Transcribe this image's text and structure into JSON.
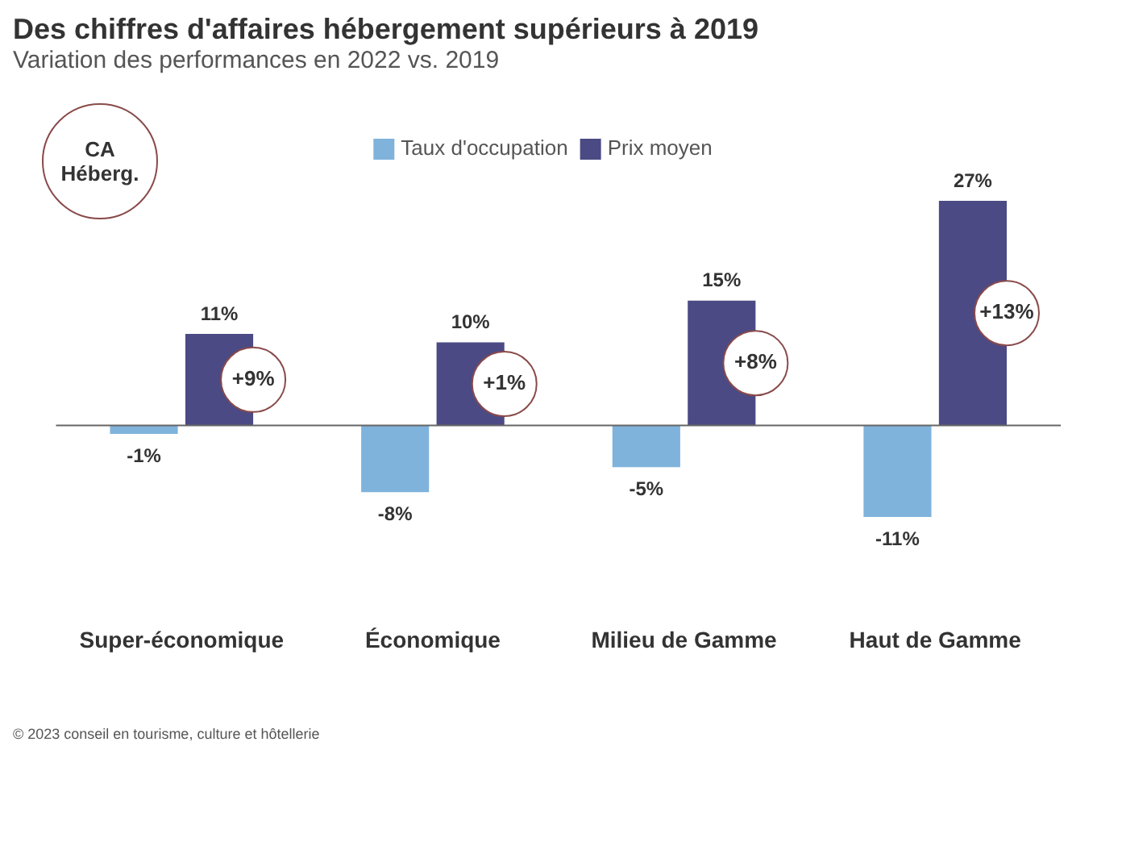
{
  "chart_data": {
    "type": "bar",
    "title": "Des chiffres d'affaires hébergement supérieurs à 2019",
    "subtitle": "Variation des performances en 2022 vs. 2019",
    "categories": [
      "Super-économique",
      "Économique",
      "Milieu de Gamme",
      "Haut de Gamme"
    ],
    "series": [
      {
        "name": "Taux d'occupation",
        "color": "#7fb3dc",
        "values": [
          -1,
          -8,
          -5,
          -11
        ],
        "value_labels": [
          "-1%",
          "-8%",
          "-5%",
          "-11%"
        ]
      },
      {
        "name": "Prix moyen",
        "color": "#4b4a84",
        "values": [
          11,
          10,
          15,
          27
        ],
        "value_labels": [
          "11%",
          "10%",
          "15%",
          "27%"
        ]
      }
    ],
    "annotations": [
      "CA Héberg.",
      {
        "text": "+9%",
        "x": "Super-économique"
      },
      {
        "text": "+1%",
        "x": "Économique"
      },
      {
        "text": "+8%",
        "x": "Milieu de Gamme"
      },
      {
        "text": "+13%",
        "x": "Haut de Gamme"
      },
      "© 2023 conseil en tourisme, culture et hôtellerie"
    ],
    "legend": "top",
    "grid": false
  }
}
